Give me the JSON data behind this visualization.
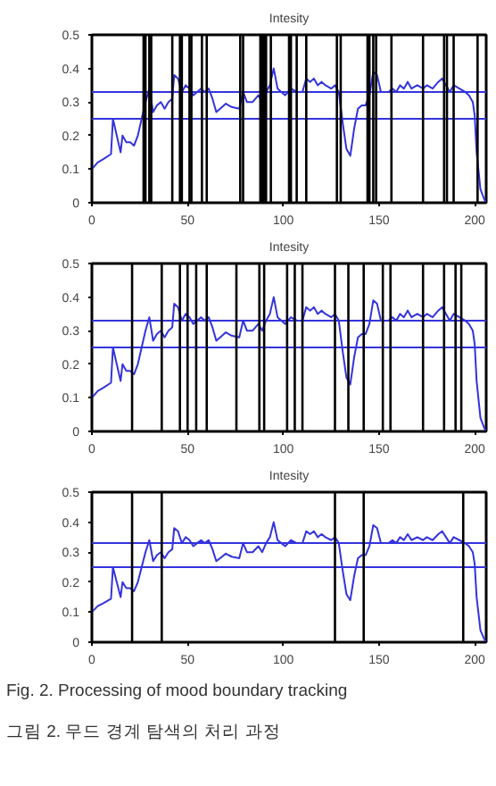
{
  "chart_data": [
    {
      "type": "line",
      "title": "Intesity",
      "xlim": [
        0,
        206
      ],
      "xticks": [
        0,
        50,
        100,
        150,
        200
      ],
      "ylim": [
        0,
        0.5
      ],
      "yticks": [
        0,
        0.1,
        0.2,
        0.3,
        0.4,
        0.5
      ],
      "grid": false,
      "x": [
        0,
        3,
        6,
        10,
        11,
        13,
        15,
        16,
        18,
        20,
        22,
        24,
        26,
        28,
        30,
        32,
        34,
        36,
        38,
        40,
        42,
        43,
        45,
        47,
        49,
        51,
        53,
        55,
        57,
        59,
        61,
        63,
        65,
        67,
        70,
        73,
        77,
        79,
        81,
        84,
        87,
        89,
        91,
        93,
        95,
        97,
        99,
        101,
        104,
        107,
        110,
        112,
        114,
        116,
        118,
        120,
        122,
        125,
        127,
        129,
        131,
        133,
        135,
        137,
        139,
        141,
        143,
        145,
        147,
        149,
        151,
        155,
        157,
        159,
        161,
        163,
        165,
        167,
        170,
        173,
        175,
        178,
        181,
        183,
        185,
        187,
        189,
        192,
        195,
        197,
        199,
        200,
        201,
        203,
        205,
        206
      ],
      "series": [
        {
          "color": "#3333dd",
          "values": [
            0.1,
            0.12,
            0.13,
            0.145,
            0.25,
            0.2,
            0.15,
            0.2,
            0.18,
            0.18,
            0.17,
            0.2,
            0.25,
            0.3,
            0.34,
            0.27,
            0.29,
            0.3,
            0.28,
            0.3,
            0.31,
            0.38,
            0.37,
            0.33,
            0.35,
            0.34,
            0.32,
            0.33,
            0.34,
            0.33,
            0.34,
            0.31,
            0.27,
            0.28,
            0.295,
            0.285,
            0.28,
            0.33,
            0.3,
            0.3,
            0.32,
            0.3,
            0.33,
            0.35,
            0.4,
            0.34,
            0.33,
            0.32,
            0.34,
            0.33,
            0.33,
            0.37,
            0.36,
            0.37,
            0.35,
            0.36,
            0.35,
            0.34,
            0.35,
            0.33,
            0.24,
            0.16,
            0.14,
            0.22,
            0.28,
            0.29,
            0.29,
            0.32,
            0.39,
            0.38,
            0.33,
            0.33,
            0.34,
            0.33,
            0.35,
            0.34,
            0.36,
            0.34,
            0.35,
            0.34,
            0.35,
            0.34,
            0.36,
            0.37,
            0.35,
            0.33,
            0.35,
            0.34,
            0.33,
            0.32,
            0.3,
            0.26,
            0.15,
            0.04,
            0.01,
            0.0
          ]
        }
      ],
      "ref_lines": [
        {
          "axis": "y",
          "value": 0.33,
          "color": "#3333dd"
        },
        {
          "axis": "y",
          "value": 0.25,
          "color": "#3333dd"
        },
        {
          "axis": "x",
          "value": 27,
          "color": "#000000"
        },
        {
          "axis": "x",
          "value": 28,
          "color": "#000000"
        },
        {
          "axis": "x",
          "value": 30,
          "color": "#000000"
        },
        {
          "axis": "x",
          "value": 31,
          "color": "#000000"
        },
        {
          "axis": "x",
          "value": 42,
          "color": "#000000"
        },
        {
          "axis": "x",
          "value": 46,
          "color": "#000000"
        },
        {
          "axis": "x",
          "value": 47,
          "color": "#000000"
        },
        {
          "axis": "x",
          "value": 51,
          "color": "#000000"
        },
        {
          "axis": "x",
          "value": 52,
          "color": "#000000"
        },
        {
          "axis": "x",
          "value": 57.5,
          "color": "#000000"
        },
        {
          "axis": "x",
          "value": 60,
          "color": "#000000"
        },
        {
          "axis": "x",
          "value": 77.5,
          "color": "#000000"
        },
        {
          "axis": "x",
          "value": 79,
          "color": "#000000"
        },
        {
          "axis": "x",
          "value": 88,
          "color": "#000000"
        },
        {
          "axis": "x",
          "value": 89,
          "color": "#000000"
        },
        {
          "axis": "x",
          "value": 90,
          "color": "#000000"
        },
        {
          "axis": "x",
          "value": 91,
          "color": "#000000"
        },
        {
          "axis": "x",
          "value": 93.5,
          "color": "#000000"
        },
        {
          "axis": "x",
          "value": 103,
          "color": "#000000"
        },
        {
          "axis": "x",
          "value": 104,
          "color": "#000000"
        },
        {
          "axis": "x",
          "value": 107,
          "color": "#000000"
        },
        {
          "axis": "x",
          "value": 112,
          "color": "#000000"
        },
        {
          "axis": "x",
          "value": 128,
          "color": "#000000"
        },
        {
          "axis": "x",
          "value": 130,
          "color": "#000000"
        },
        {
          "axis": "x",
          "value": 144,
          "color": "#000000"
        },
        {
          "axis": "x",
          "value": 145,
          "color": "#000000"
        },
        {
          "axis": "x",
          "value": 147,
          "color": "#000000"
        },
        {
          "axis": "x",
          "value": 148.5,
          "color": "#000000"
        },
        {
          "axis": "x",
          "value": 156.5,
          "color": "#000000"
        },
        {
          "axis": "x",
          "value": 173,
          "color": "#000000"
        },
        {
          "axis": "x",
          "value": 184,
          "color": "#000000"
        },
        {
          "axis": "x",
          "value": 185.5,
          "color": "#000000"
        },
        {
          "axis": "x",
          "value": 189,
          "color": "#000000"
        },
        {
          "axis": "x",
          "value": 201.5,
          "color": "#000000"
        }
      ]
    },
    {
      "type": "line",
      "title": "Intesity",
      "xlim": [
        0,
        206
      ],
      "xticks": [
        0,
        50,
        100,
        150,
        200
      ],
      "ylim": [
        0,
        0.5
      ],
      "yticks": [
        0,
        0.1,
        0.2,
        0.3,
        0.4,
        0.5
      ],
      "grid": false,
      "x": [
        0,
        3,
        6,
        10,
        11,
        13,
        15,
        16,
        18,
        20,
        22,
        24,
        26,
        28,
        30,
        32,
        34,
        36,
        38,
        40,
        42,
        43,
        45,
        47,
        49,
        51,
        53,
        55,
        57,
        59,
        61,
        63,
        65,
        67,
        70,
        73,
        77,
        79,
        81,
        84,
        87,
        89,
        91,
        93,
        95,
        97,
        99,
        101,
        104,
        107,
        110,
        112,
        114,
        116,
        118,
        120,
        122,
        125,
        127,
        129,
        131,
        133,
        135,
        137,
        139,
        141,
        143,
        145,
        147,
        149,
        151,
        155,
        157,
        159,
        161,
        163,
        165,
        167,
        170,
        173,
        175,
        178,
        181,
        183,
        185,
        187,
        189,
        192,
        195,
        197,
        199,
        200,
        201,
        203,
        205,
        206
      ],
      "series": [
        {
          "color": "#3333dd",
          "values": [
            0.1,
            0.12,
            0.13,
            0.145,
            0.25,
            0.2,
            0.15,
            0.2,
            0.18,
            0.18,
            0.17,
            0.2,
            0.25,
            0.3,
            0.34,
            0.27,
            0.29,
            0.3,
            0.28,
            0.3,
            0.31,
            0.38,
            0.37,
            0.33,
            0.35,
            0.34,
            0.32,
            0.33,
            0.34,
            0.33,
            0.34,
            0.31,
            0.27,
            0.28,
            0.295,
            0.285,
            0.28,
            0.33,
            0.3,
            0.3,
            0.32,
            0.3,
            0.33,
            0.35,
            0.4,
            0.34,
            0.33,
            0.32,
            0.34,
            0.33,
            0.33,
            0.37,
            0.36,
            0.37,
            0.35,
            0.36,
            0.35,
            0.34,
            0.35,
            0.33,
            0.24,
            0.16,
            0.14,
            0.22,
            0.28,
            0.29,
            0.29,
            0.32,
            0.39,
            0.38,
            0.33,
            0.33,
            0.34,
            0.33,
            0.35,
            0.34,
            0.36,
            0.34,
            0.35,
            0.34,
            0.35,
            0.34,
            0.36,
            0.37,
            0.35,
            0.33,
            0.35,
            0.34,
            0.33,
            0.32,
            0.3,
            0.26,
            0.15,
            0.04,
            0.01,
            0.0
          ]
        }
      ],
      "ref_lines": [
        {
          "axis": "y",
          "value": 0.33,
          "color": "#3333dd"
        },
        {
          "axis": "y",
          "value": 0.25,
          "color": "#3333dd"
        },
        {
          "axis": "x",
          "value": 21,
          "color": "#000000"
        },
        {
          "axis": "x",
          "value": 36.5,
          "color": "#000000"
        },
        {
          "axis": "x",
          "value": 46,
          "color": "#000000"
        },
        {
          "axis": "x",
          "value": 50,
          "color": "#000000"
        },
        {
          "axis": "x",
          "value": 54.5,
          "color": "#000000"
        },
        {
          "axis": "x",
          "value": 60,
          "color": "#000000"
        },
        {
          "axis": "x",
          "value": 75.5,
          "color": "#000000"
        },
        {
          "axis": "x",
          "value": 87.5,
          "color": "#000000"
        },
        {
          "axis": "x",
          "value": 90,
          "color": "#000000"
        },
        {
          "axis": "x",
          "value": 102,
          "color": "#000000"
        },
        {
          "axis": "x",
          "value": 106,
          "color": "#000000"
        },
        {
          "axis": "x",
          "value": 110,
          "color": "#000000"
        },
        {
          "axis": "x",
          "value": 127,
          "color": "#000000"
        },
        {
          "axis": "x",
          "value": 134,
          "color": "#000000"
        },
        {
          "axis": "x",
          "value": 142,
          "color": "#000000"
        },
        {
          "axis": "x",
          "value": 152,
          "color": "#000000"
        },
        {
          "axis": "x",
          "value": 156,
          "color": "#000000"
        },
        {
          "axis": "x",
          "value": 173,
          "color": "#000000"
        },
        {
          "axis": "x",
          "value": 184,
          "color": "#000000"
        },
        {
          "axis": "x",
          "value": 190,
          "color": "#000000"
        },
        {
          "axis": "x",
          "value": 193,
          "color": "#000000"
        }
      ]
    },
    {
      "type": "line",
      "title": "Intesity",
      "xlim": [
        0,
        206
      ],
      "xticks": [
        0,
        50,
        100,
        150,
        200
      ],
      "ylim": [
        0,
        0.5
      ],
      "yticks": [
        0,
        0.1,
        0.2,
        0.3,
        0.4,
        0.5
      ],
      "grid": false,
      "x": [
        0,
        3,
        6,
        10,
        11,
        13,
        15,
        16,
        18,
        20,
        22,
        24,
        26,
        28,
        30,
        32,
        34,
        36,
        38,
        40,
        42,
        43,
        45,
        47,
        49,
        51,
        53,
        55,
        57,
        59,
        61,
        63,
        65,
        67,
        70,
        73,
        77,
        79,
        81,
        84,
        87,
        89,
        91,
        93,
        95,
        97,
        99,
        101,
        104,
        107,
        110,
        112,
        114,
        116,
        118,
        120,
        122,
        125,
        127,
        129,
        131,
        133,
        135,
        137,
        139,
        141,
        143,
        145,
        147,
        149,
        151,
        155,
        157,
        159,
        161,
        163,
        165,
        167,
        170,
        173,
        175,
        178,
        181,
        183,
        185,
        187,
        189,
        192,
        195,
        197,
        199,
        200,
        201,
        203,
        205,
        206
      ],
      "series": [
        {
          "color": "#3333dd",
          "values": [
            0.1,
            0.12,
            0.13,
            0.145,
            0.25,
            0.2,
            0.15,
            0.2,
            0.18,
            0.18,
            0.17,
            0.2,
            0.25,
            0.3,
            0.34,
            0.27,
            0.29,
            0.3,
            0.28,
            0.3,
            0.31,
            0.38,
            0.37,
            0.33,
            0.35,
            0.34,
            0.32,
            0.33,
            0.34,
            0.33,
            0.34,
            0.31,
            0.27,
            0.28,
            0.295,
            0.285,
            0.28,
            0.33,
            0.3,
            0.3,
            0.32,
            0.3,
            0.33,
            0.35,
            0.4,
            0.34,
            0.33,
            0.32,
            0.34,
            0.33,
            0.33,
            0.37,
            0.36,
            0.37,
            0.35,
            0.36,
            0.35,
            0.34,
            0.35,
            0.33,
            0.24,
            0.16,
            0.14,
            0.22,
            0.28,
            0.29,
            0.29,
            0.32,
            0.39,
            0.38,
            0.33,
            0.33,
            0.34,
            0.33,
            0.35,
            0.34,
            0.36,
            0.34,
            0.35,
            0.34,
            0.35,
            0.34,
            0.36,
            0.37,
            0.35,
            0.33,
            0.35,
            0.34,
            0.33,
            0.32,
            0.3,
            0.26,
            0.15,
            0.04,
            0.01,
            0.0
          ]
        }
      ],
      "ref_lines": [
        {
          "axis": "y",
          "value": 0.33,
          "color": "#3333dd"
        },
        {
          "axis": "y",
          "value": 0.25,
          "color": "#3333dd"
        },
        {
          "axis": "x",
          "value": 21,
          "color": "#000000"
        },
        {
          "axis": "x",
          "value": 36.5,
          "color": "#000000"
        },
        {
          "axis": "x",
          "value": 127,
          "color": "#000000"
        },
        {
          "axis": "x",
          "value": 142,
          "color": "#000000"
        },
        {
          "axis": "x",
          "value": 194,
          "color": "#000000"
        }
      ],
      "annotations": [
        "Fig.   2.   Processing of mood boundary tracking",
        "그림  2.   무드 경계 탐색의 처리 과정"
      ]
    }
  ]
}
